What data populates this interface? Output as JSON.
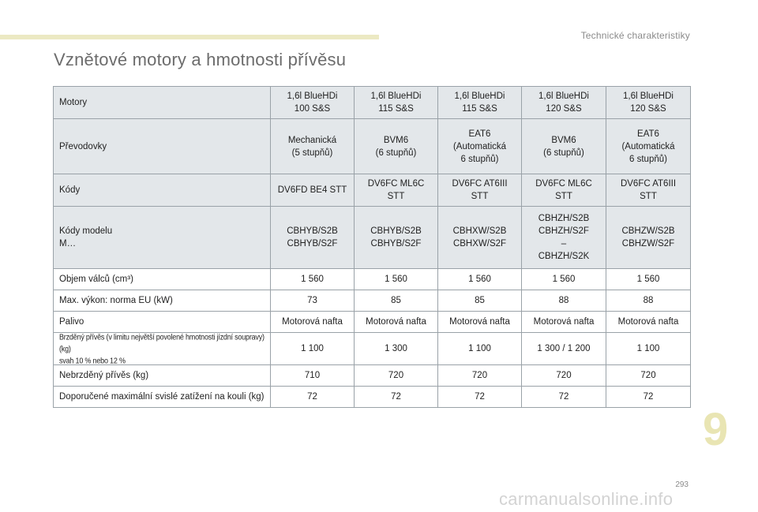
{
  "header": {
    "section_title": "Technické charakteristiky",
    "accent_color": "#ece9c3"
  },
  "page_title": "Vznětové motory a hmotnosti přívěsu",
  "table": {
    "columns": [
      "1,6l BlueHDi\n100 S&S",
      "1,6l BlueHDi\n115 S&S",
      "1,6l BlueHDi\n115 S&S",
      "1,6l BlueHDi\n120 S&S",
      "1,6l BlueHDi\n120 S&S"
    ],
    "header_label": "Motory",
    "rows": [
      {
        "label": "Převodovky",
        "values": [
          "Mechanická\n(5 stupňů)",
          "BVM6\n(6 stupňů)",
          "EAT6\n(Automatická\n6 stupňů)",
          "BVM6\n(6 stupňů)",
          "EAT6\n(Automatická\n6 stupňů)"
        ]
      },
      {
        "label": "Kódy",
        "values": [
          "DV6FD BE4 STT",
          "DV6FC ML6C\nSTT",
          "DV6FC AT6III\nSTT",
          "DV6FC ML6C\nSTT",
          "DV6FC AT6III\nSTT"
        ]
      },
      {
        "label": "Kódy modelu\nM…",
        "values": [
          "CBHYB/S2B\nCBHYB/S2F",
          "CBHYB/S2B\nCBHYB/S2F",
          "CBHXW/S2B\nCBHXW/S2F",
          "CBHZH/S2B\nCBHZH/S2F\n–\nCBHZH/S2K",
          "CBHZW/S2B\nCBHZW/S2F"
        ]
      },
      {
        "label": "Objem válců (cm³)",
        "values": [
          "1 560",
          "1 560",
          "1 560",
          "1 560",
          "1 560"
        ]
      },
      {
        "label": "Max. výkon: norma EU (kW)",
        "values": [
          "73",
          "85",
          "85",
          "88",
          "88"
        ]
      },
      {
        "label": "Palivo",
        "values": [
          "Motorová nafta",
          "Motorová nafta",
          "Motorová nafta",
          "Motorová nafta",
          "Motorová nafta"
        ]
      },
      {
        "label": "Brzděný přívěs (v limitu největší povolené hmotnosti jízdní soupravy) (kg)\nsvah 10 % nebo 12 %",
        "values": [
          "1 100",
          "1 300",
          "1 100",
          "1 300 / 1 200",
          "1 100"
        ]
      },
      {
        "label": "Nebrzděný přívěs (kg)",
        "values": [
          "710",
          "720",
          "720",
          "720",
          "720"
        ]
      },
      {
        "label": "Doporučené maximální svislé zatížení na kouli (kg)",
        "values": [
          "72",
          "72",
          "72",
          "72",
          "72"
        ]
      }
    ]
  },
  "chapter_number": "9",
  "page_number": "293",
  "watermark": "carmanualsonline.info"
}
